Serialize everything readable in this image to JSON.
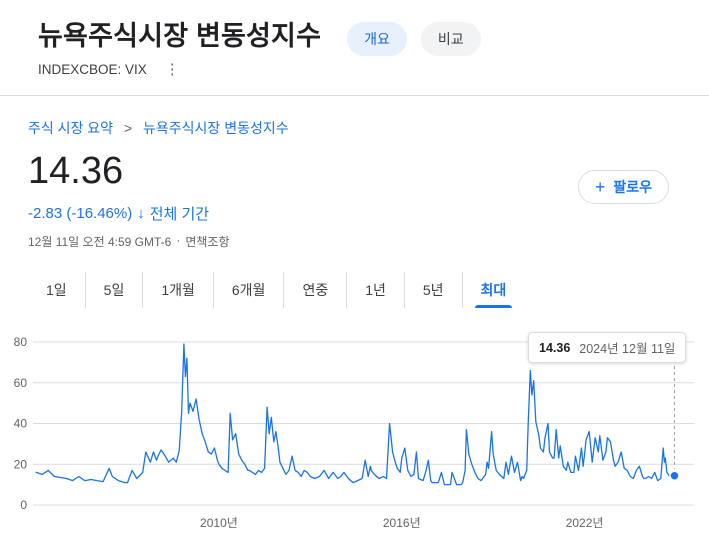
{
  "header": {
    "title": "뉴욕주식시장 변동성지수",
    "ticker": "INDEXCBOE: VIX",
    "tabs": [
      {
        "label": "개요",
        "active": true
      },
      {
        "label": "비교",
        "active": false
      }
    ]
  },
  "breadcrumb": {
    "root": "주식 시장 요약",
    "separator": ">",
    "current": "뉴욕주식시장 변동성지수"
  },
  "quote": {
    "price": "14.36",
    "change": "-2.83 (-16.46%)",
    "change_arrow": "↓",
    "period_label": "전체 기간",
    "timestamp": "12월 11일 오전 4:59 GMT-6",
    "dot_separator": "·",
    "disclaimer": "면책조항",
    "follow_label": "팔로우",
    "plus_glyph": "+",
    "accent_color": "#1a73e8"
  },
  "range_tabs": [
    {
      "label": "1일",
      "active": false
    },
    {
      "label": "5일",
      "active": false
    },
    {
      "label": "1개월",
      "active": false
    },
    {
      "label": "6개월",
      "active": false
    },
    {
      "label": "연중",
      "active": false
    },
    {
      "label": "1년",
      "active": false
    },
    {
      "label": "5년",
      "active": false
    },
    {
      "label": "최대",
      "active": true
    }
  ],
  "tooltip": {
    "value": "14.36",
    "date": "2024년 12월 11일"
  },
  "chart_data": {
    "type": "line",
    "x_range": [
      2003.8,
      2025.0
    ],
    "y_range": [
      0,
      80
    ],
    "yticks": [
      0,
      20,
      40,
      60,
      80
    ],
    "xticks": [
      {
        "x": 2010,
        "label": "2010년"
      },
      {
        "x": 2016,
        "label": "2016년"
      },
      {
        "x": 2022,
        "label": "2022년"
      }
    ],
    "line_color": "#1a73e8",
    "grid_color": "#dadce0",
    "legend": false,
    "series": [
      {
        "name": "INDEXCBOE: VIX",
        "points": [
          [
            2004.0,
            16
          ],
          [
            2004.2,
            15
          ],
          [
            2004.4,
            17
          ],
          [
            2004.6,
            14
          ],
          [
            2004.8,
            13.5
          ],
          [
            2005.0,
            13
          ],
          [
            2005.2,
            12
          ],
          [
            2005.4,
            14
          ],
          [
            2005.6,
            12
          ],
          [
            2005.8,
            12.5
          ],
          [
            2006.0,
            12
          ],
          [
            2006.2,
            11.5
          ],
          [
            2006.4,
            18
          ],
          [
            2006.5,
            14
          ],
          [
            2006.7,
            12
          ],
          [
            2006.9,
            11
          ],
          [
            2007.0,
            11
          ],
          [
            2007.15,
            17
          ],
          [
            2007.3,
            13
          ],
          [
            2007.5,
            16
          ],
          [
            2007.6,
            26
          ],
          [
            2007.75,
            21
          ],
          [
            2007.85,
            26
          ],
          [
            2007.95,
            22
          ],
          [
            2008.0,
            24
          ],
          [
            2008.1,
            27
          ],
          [
            2008.2,
            25
          ],
          [
            2008.35,
            21
          ],
          [
            2008.5,
            23
          ],
          [
            2008.6,
            21
          ],
          [
            2008.7,
            27
          ],
          [
            2008.78,
            46
          ],
          [
            2008.85,
            79
          ],
          [
            2008.9,
            63
          ],
          [
            2008.95,
            72
          ],
          [
            2009.0,
            45
          ],
          [
            2009.05,
            50
          ],
          [
            2009.15,
            46
          ],
          [
            2009.25,
            52
          ],
          [
            2009.35,
            42
          ],
          [
            2009.45,
            35
          ],
          [
            2009.55,
            31
          ],
          [
            2009.65,
            26
          ],
          [
            2009.75,
            25
          ],
          [
            2009.85,
            28
          ],
          [
            2009.95,
            22
          ],
          [
            2010.0,
            20
          ],
          [
            2010.1,
            18
          ],
          [
            2010.2,
            17
          ],
          [
            2010.3,
            16
          ],
          [
            2010.37,
            45
          ],
          [
            2010.45,
            32
          ],
          [
            2010.55,
            35
          ],
          [
            2010.65,
            25
          ],
          [
            2010.75,
            22
          ],
          [
            2010.85,
            20
          ],
          [
            2010.95,
            17
          ],
          [
            2011.0,
            17
          ],
          [
            2011.1,
            16
          ],
          [
            2011.2,
            15
          ],
          [
            2011.3,
            17
          ],
          [
            2011.4,
            16
          ],
          [
            2011.5,
            18
          ],
          [
            2011.58,
            48
          ],
          [
            2011.65,
            35
          ],
          [
            2011.72,
            43
          ],
          [
            2011.8,
            31
          ],
          [
            2011.87,
            36
          ],
          [
            2011.95,
            28
          ],
          [
            2012.0,
            21
          ],
          [
            2012.1,
            18
          ],
          [
            2012.2,
            15
          ],
          [
            2012.3,
            17
          ],
          [
            2012.4,
            24
          ],
          [
            2012.5,
            17
          ],
          [
            2012.6,
            16
          ],
          [
            2012.7,
            14
          ],
          [
            2012.8,
            17
          ],
          [
            2012.9,
            16
          ],
          [
            2013.0,
            14
          ],
          [
            2013.15,
            13
          ],
          [
            2013.3,
            14
          ],
          [
            2013.45,
            17
          ],
          [
            2013.6,
            13
          ],
          [
            2013.75,
            16
          ],
          [
            2013.9,
            13
          ],
          [
            2014.0,
            14
          ],
          [
            2014.1,
            16
          ],
          [
            2014.25,
            13
          ],
          [
            2014.4,
            11
          ],
          [
            2014.55,
            12
          ],
          [
            2014.7,
            13
          ],
          [
            2014.8,
            22
          ],
          [
            2014.9,
            14
          ],
          [
            2014.97,
            19
          ],
          [
            2015.0,
            17
          ],
          [
            2015.1,
            15
          ],
          [
            2015.25,
            13
          ],
          [
            2015.4,
            14
          ],
          [
            2015.5,
            13
          ],
          [
            2015.6,
            40
          ],
          [
            2015.7,
            26
          ],
          [
            2015.75,
            23
          ],
          [
            2015.85,
            18
          ],
          [
            2015.95,
            16
          ],
          [
            2016.0,
            23
          ],
          [
            2016.1,
            28
          ],
          [
            2016.2,
            17
          ],
          [
            2016.3,
            14
          ],
          [
            2016.4,
            15
          ],
          [
            2016.48,
            26
          ],
          [
            2016.55,
            13
          ],
          [
            2016.7,
            12
          ],
          [
            2016.8,
            17
          ],
          [
            2016.87,
            22
          ],
          [
            2016.95,
            12
          ],
          [
            2017.0,
            11
          ],
          [
            2017.2,
            11
          ],
          [
            2017.3,
            16
          ],
          [
            2017.4,
            10
          ],
          [
            2017.6,
            10
          ],
          [
            2017.65,
            16
          ],
          [
            2017.8,
            10
          ],
          [
            2017.95,
            10
          ],
          [
            2018.0,
            11
          ],
          [
            2018.08,
            17
          ],
          [
            2018.12,
            37
          ],
          [
            2018.2,
            25
          ],
          [
            2018.3,
            20
          ],
          [
            2018.4,
            16
          ],
          [
            2018.5,
            13
          ],
          [
            2018.6,
            12
          ],
          [
            2018.75,
            15
          ],
          [
            2018.8,
            21
          ],
          [
            2018.85,
            18
          ],
          [
            2018.95,
            36
          ],
          [
            2019.0,
            25
          ],
          [
            2019.1,
            17
          ],
          [
            2019.2,
            15
          ],
          [
            2019.35,
            13
          ],
          [
            2019.42,
            21
          ],
          [
            2019.5,
            15
          ],
          [
            2019.6,
            24
          ],
          [
            2019.7,
            16
          ],
          [
            2019.8,
            21
          ],
          [
            2019.9,
            12
          ],
          [
            2019.95,
            14
          ],
          [
            2020.0,
            13
          ],
          [
            2020.1,
            17
          ],
          [
            2020.15,
            40
          ],
          [
            2020.22,
            66
          ],
          [
            2020.27,
            54
          ],
          [
            2020.33,
            61
          ],
          [
            2020.4,
            41
          ],
          [
            2020.5,
            34
          ],
          [
            2020.55,
            28
          ],
          [
            2020.65,
            26
          ],
          [
            2020.7,
            33
          ],
          [
            2020.8,
            40
          ],
          [
            2020.85,
            26
          ],
          [
            2020.95,
            23
          ],
          [
            2021.0,
            23
          ],
          [
            2021.07,
            37
          ],
          [
            2021.15,
            23
          ],
          [
            2021.2,
            29
          ],
          [
            2021.3,
            19
          ],
          [
            2021.4,
            17
          ],
          [
            2021.45,
            21
          ],
          [
            2021.55,
            16
          ],
          [
            2021.65,
            16
          ],
          [
            2021.7,
            24
          ],
          [
            2021.8,
            17
          ],
          [
            2021.9,
            28
          ],
          [
            2021.95,
            19
          ],
          [
            2022.0,
            25
          ],
          [
            2022.05,
            32
          ],
          [
            2022.15,
            36
          ],
          [
            2022.25,
            21
          ],
          [
            2022.35,
            33
          ],
          [
            2022.45,
            26
          ],
          [
            2022.5,
            34
          ],
          [
            2022.6,
            22
          ],
          [
            2022.7,
            26
          ],
          [
            2022.75,
            33
          ],
          [
            2022.85,
            31
          ],
          [
            2022.95,
            22
          ],
          [
            2023.0,
            19
          ],
          [
            2023.1,
            21
          ],
          [
            2023.2,
            26
          ],
          [
            2023.3,
            18
          ],
          [
            2023.4,
            17
          ],
          [
            2023.5,
            14
          ],
          [
            2023.6,
            13
          ],
          [
            2023.7,
            17
          ],
          [
            2023.8,
            19
          ],
          [
            2023.9,
            14
          ],
          [
            2023.95,
            13
          ],
          [
            2024.0,
            13
          ],
          [
            2024.1,
            14
          ],
          [
            2024.2,
            13
          ],
          [
            2024.3,
            16
          ],
          [
            2024.4,
            12
          ],
          [
            2024.5,
            13
          ],
          [
            2024.58,
            28
          ],
          [
            2024.62,
            21
          ],
          [
            2024.65,
            23
          ],
          [
            2024.7,
            16
          ],
          [
            2024.8,
            14
          ],
          [
            2024.85,
            15
          ],
          [
            2024.9,
            13
          ],
          [
            2024.95,
            14.36
          ]
        ]
      }
    ]
  }
}
